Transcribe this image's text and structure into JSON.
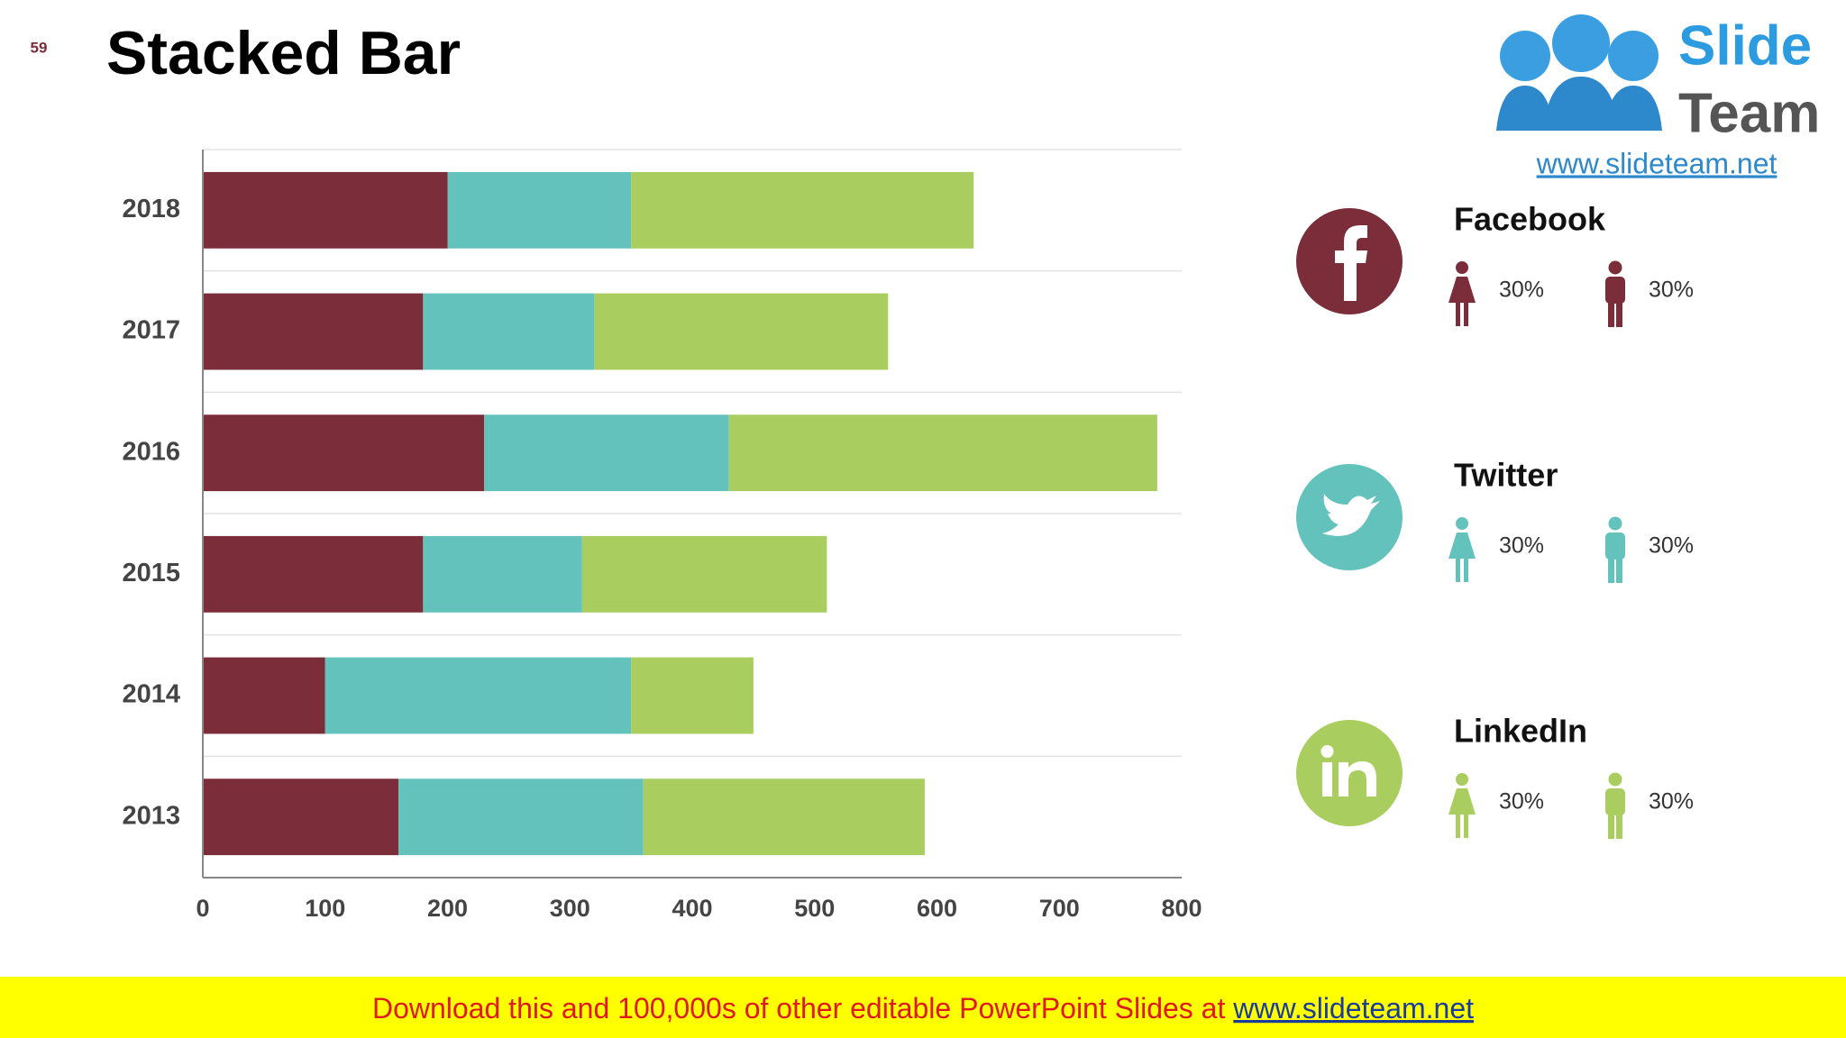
{
  "slide_number": "59",
  "chart_data": {
    "type": "stacked-bar-horizontal",
    "title": "Stacked Bar",
    "categories": [
      "2018",
      "2017",
      "2016",
      "2015",
      "2014",
      "2013"
    ],
    "series": [
      {
        "color": "#7b2e3a",
        "values": [
          200,
          180,
          230,
          180,
          100,
          160
        ]
      },
      {
        "color": "#64c2bd",
        "values": [
          150,
          140,
          200,
          130,
          250,
          200
        ]
      },
      {
        "color": "#a9cd5e",
        "values": [
          280,
          240,
          350,
          200,
          100,
          230
        ]
      }
    ],
    "xlim": [
      0,
      800
    ],
    "xticks": [
      0,
      100,
      200,
      300,
      400,
      500,
      600,
      700,
      800
    ]
  },
  "logo": {
    "line1": "Slide",
    "line2": "Team",
    "url": "www.slideteam.net"
  },
  "social": [
    {
      "name": "Facebook",
      "color": "#7b2e3a",
      "female": "30%",
      "male": "30%"
    },
    {
      "name": "Twitter",
      "color": "#64c2bd",
      "female": "30%",
      "male": "30%"
    },
    {
      "name": "LinkedIn",
      "color": "#a9cd5e",
      "female": "30%",
      "male": "30%"
    }
  ],
  "banner": {
    "text": "Download this and 100,000s of other editable PowerPoint Slides at ",
    "link": "www.slideteam.net"
  }
}
